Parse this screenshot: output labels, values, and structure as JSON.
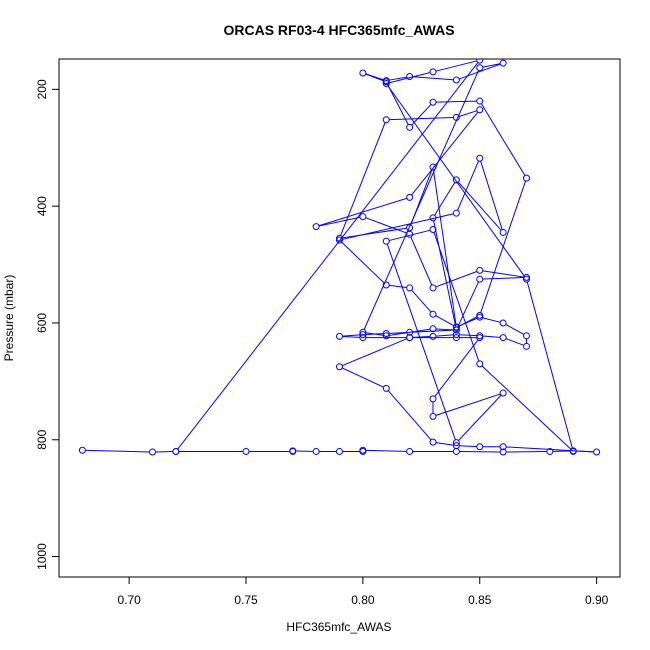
{
  "chart_data": {
    "type": "line",
    "title": "ORCAS RF03-4 HFC365mfc_AWAS",
    "xlabel": "HFC365mfc_AWAS",
    "ylabel": "Pressure (mbar)",
    "xlim": [
      0.67,
      0.91
    ],
    "ylim": [
      1035,
      148
    ],
    "y_reversed": true,
    "x_ticks": [
      0.7,
      0.75,
      0.8,
      0.85,
      0.9
    ],
    "x_tick_labels": [
      "0.70",
      "0.75",
      "0.80",
      "0.85",
      "0.90"
    ],
    "y_ticks": [
      200,
      400,
      600,
      800,
      1000
    ],
    "y_tick_labels": [
      "200",
      "400",
      "600",
      "800",
      "1000"
    ],
    "grid": false,
    "legend": "none",
    "marker": "open-circle",
    "color": "#0000ff",
    "series": [
      {
        "x": [
          0.68,
          0.71,
          0.72,
          0.75,
          0.77,
          0.77,
          0.78,
          0.79,
          0.8,
          0.8,
          0.82,
          0.84,
          0.86,
          0.88,
          0.89,
          0.9,
          0.86,
          0.85,
          0.84,
          0.83,
          0.81,
          0.79,
          0.82,
          0.83,
          0.84,
          0.85,
          0.86,
          0.87,
          0.87,
          0.86,
          0.85,
          0.84,
          0.83,
          0.82,
          0.81,
          0.79,
          0.84,
          0.85,
          0.86,
          0.84,
          0.83,
          0.84,
          0.85,
          0.87,
          0.85,
          0.83,
          0.82,
          0.8,
          0.78,
          0.82,
          0.85,
          0.84,
          0.81,
          0.79,
          0.82,
          0.83,
          0.84,
          0.85,
          0.87,
          0.85,
          0.83,
          0.82,
          0.81,
          0.8,
          0.81,
          0.82,
          0.84,
          0.86,
          0.85,
          0.8,
          0.81,
          0.83,
          0.84,
          0.82,
          0.81,
          0.8,
          0.79,
          0.8,
          0.82,
          0.84,
          0.85,
          0.83,
          0.83,
          0.86,
          0.84,
          0.81,
          0.83,
          0.85,
          0.89,
          0.87,
          0.81,
          0.83,
          0.85,
          0.72
        ],
        "y": [
          818,
          821,
          820,
          820,
          820,
          819,
          820,
          820,
          820,
          818,
          820,
          820,
          821,
          820,
          819,
          821,
          812,
          812,
          810,
          804,
          712,
          675,
          625,
          623,
          620,
          622,
          625,
          640,
          622,
          600,
          590,
          607,
          585,
          540,
          535,
          458,
          412,
          318,
          445,
          355,
          420,
          612,
          525,
          522,
          510,
          540,
          448,
          418,
          435,
          385,
          235,
          248,
          252,
          455,
          437,
          333,
          608,
          587,
          352,
          220,
          222,
          265,
          187,
          172,
          185,
          178,
          184,
          155,
          163,
          616,
          622,
          610,
          612,
          616,
          618,
          620,
          623,
          625,
          625,
          625,
          625,
          730,
          760,
          720,
          805,
          460,
          440,
          670,
          820,
          525,
          190,
          170,
          150,
          820
        ]
      }
    ]
  }
}
